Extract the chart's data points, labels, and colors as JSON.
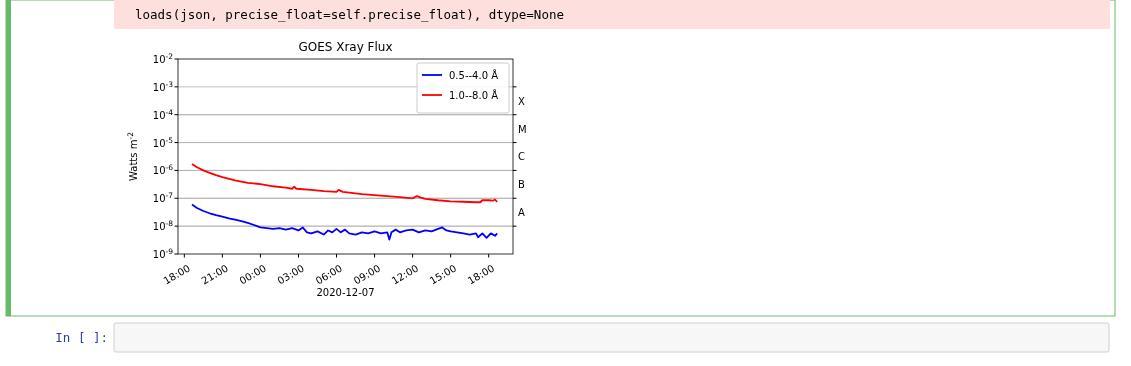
{
  "chart_data": {
    "type": "line",
    "title": "GOES Xray Flux",
    "xlabel": "2020-12-07",
    "ylabel": "Watts m$^{-2}$",
    "xlim": [
      "2020-12-06T17:30",
      "2020-12-07T19:55"
    ],
    "xticks": [
      {
        "value": "2020-12-06T18:00",
        "label": "18:00"
      },
      {
        "value": "2020-12-06T21:00",
        "label": "21:00"
      },
      {
        "value": "2020-12-07T00:00",
        "label": "00:00"
      },
      {
        "value": "2020-12-07T03:00",
        "label": "03:00"
      },
      {
        "value": "2020-12-07T06:00",
        "label": "06:00"
      },
      {
        "value": "2020-12-07T09:00",
        "label": "09:00"
      },
      {
        "value": "2020-12-07T12:00",
        "label": "12:00"
      },
      {
        "value": "2020-12-07T15:00",
        "label": "15:00"
      },
      {
        "value": "2020-12-07T18:00",
        "label": "18:00"
      }
    ],
    "ylim": [
      1e-09,
      0.01
    ],
    "yticks": [
      {
        "value": 1e-09,
        "label": "10$^{-9}$"
      },
      {
        "value": 1e-08,
        "label": "10$^{-8}$"
      },
      {
        "value": 1e-07,
        "label": "10$^{-7}$"
      },
      {
        "value": 1e-06,
        "label": "10$^{-6}$"
      },
      {
        "value": 1e-05,
        "label": "10$^{-5}$"
      },
      {
        "value": 0.0001,
        "label": "10$^{-4}$"
      },
      {
        "value": 0.001,
        "label": "10$^{-3}$"
      },
      {
        "value": 0.01,
        "label": "10$^{-2}$"
      }
    ],
    "ref_lines": [
      {
        "axis": "y",
        "value": 1e-08,
        "label": "A"
      },
      {
        "axis": "y",
        "value": 1e-07,
        "label": "B"
      },
      {
        "axis": "y",
        "value": 1e-06,
        "label": "C"
      },
      {
        "axis": "y",
        "value": 1e-05,
        "label": "M"
      },
      {
        "axis": "y",
        "value": 0.0001,
        "label": "X"
      }
    ],
    "log": "y",
    "grid": "y",
    "legend": "top right",
    "annotations": [
      "loads(json, precise_float=self.precise_float), dtype=None",
      "In [ ]:"
    ],
    "series": [
      {
        "name": "0.5--4.0 Å",
        "color": "#0000ff",
        "x": [
          "2020-12-06T18:36",
          "2020-12-06T19:00",
          "2020-12-06T19:30",
          "2020-12-06T20:00",
          "2020-12-06T20:30",
          "2020-12-06T21:00",
          "2020-12-06T21:30",
          "2020-12-06T22:00",
          "2020-12-06T22:30",
          "2020-12-06T23:00",
          "2020-12-06T23:30",
          "2020-12-07T00:00",
          "2020-12-07T00:30",
          "2020-12-07T01:00",
          "2020-12-07T01:30",
          "2020-12-07T02:00",
          "2020-12-07T02:30",
          "2020-12-07T03:00",
          "2020-12-07T03:20",
          "2020-12-07T03:40",
          "2020-12-07T04:00",
          "2020-12-07T04:30",
          "2020-12-07T05:00",
          "2020-12-07T05:20",
          "2020-12-07T05:40",
          "2020-12-07T06:00",
          "2020-12-07T06:20",
          "2020-12-07T06:40",
          "2020-12-07T07:00",
          "2020-12-07T07:30",
          "2020-12-07T08:00",
          "2020-12-07T08:30",
          "2020-12-07T09:00",
          "2020-12-07T09:30",
          "2020-12-07T10:00",
          "2020-12-07T10:10",
          "2020-12-07T10:20",
          "2020-12-07T10:40",
          "2020-12-07T11:00",
          "2020-12-07T11:30",
          "2020-12-07T12:00",
          "2020-12-07T12:30",
          "2020-12-07T13:00",
          "2020-12-07T13:30",
          "2020-12-07T14:00",
          "2020-12-07T14:20",
          "2020-12-07T14:40",
          "2020-12-07T15:00",
          "2020-12-07T15:30",
          "2020-12-07T16:00",
          "2020-12-07T16:30",
          "2020-12-07T17:00",
          "2020-12-07T17:10",
          "2020-12-07T17:30",
          "2020-12-07T17:50",
          "2020-12-07T18:10",
          "2020-12-07T18:30",
          "2020-12-07T18:40"
        ],
        "values": [
          6e-08,
          4.5e-08,
          3.5e-08,
          2.9e-08,
          2.5e-08,
          2.2e-08,
          1.9e-08,
          1.7e-08,
          1.5e-08,
          1.3e-08,
          1.1e-08,
          9e-09,
          8.5e-09,
          8e-09,
          8.5e-09,
          7.5e-09,
          8.5e-09,
          7e-09,
          9e-09,
          6e-09,
          5.5e-09,
          6.5e-09,
          5e-09,
          7e-09,
          6e-09,
          8e-09,
          6e-09,
          7.5e-09,
          5.5e-09,
          5e-09,
          6e-09,
          5.5e-09,
          6.5e-09,
          5.5e-09,
          6e-09,
          3.3e-09,
          6e-09,
          7.5e-09,
          6e-09,
          7e-09,
          7.5e-09,
          6e-09,
          7e-09,
          6.5e-09,
          8e-09,
          9e-09,
          7e-09,
          6.5e-09,
          6e-09,
          5.5e-09,
          5e-09,
          5.5e-09,
          4e-09,
          5.5e-09,
          3.8e-09,
          5.5e-09,
          4.5e-09,
          5.5e-09
        ]
      },
      {
        "name": "1.0--8.0 Å",
        "color": "#ff0000",
        "x": [
          "2020-12-06T18:36",
          "2020-12-06T19:00",
          "2020-12-06T19:30",
          "2020-12-06T20:00",
          "2020-12-06T20:30",
          "2020-12-06T21:00",
          "2020-12-06T22:00",
          "2020-12-06T23:00",
          "2020-12-07T00:00",
          "2020-12-07T01:00",
          "2020-12-07T02:00",
          "2020-12-07T02:30",
          "2020-12-07T02:40",
          "2020-12-07T02:50",
          "2020-12-07T04:00",
          "2020-12-07T05:00",
          "2020-12-07T06:00",
          "2020-12-07T06:10",
          "2020-12-07T06:30",
          "2020-12-07T08:00",
          "2020-12-07T09:00",
          "2020-12-07T10:00",
          "2020-12-07T11:00",
          "2020-12-07T12:00",
          "2020-12-07T12:20",
          "2020-12-07T12:40",
          "2020-12-07T13:00",
          "2020-12-07T14:00",
          "2020-12-07T15:00",
          "2020-12-07T16:00",
          "2020-12-07T17:00",
          "2020-12-07T17:20",
          "2020-12-07T17:30",
          "2020-12-07T18:00",
          "2020-12-07T18:20",
          "2020-12-07T18:30",
          "2020-12-07T18:40"
        ],
        "values": [
          1.7e-06,
          1.3e-06,
          1e-06,
          8.2e-07,
          6.8e-07,
          5.8e-07,
          4.4e-07,
          3.6e-07,
          3.2e-07,
          2.7e-07,
          2.4e-07,
          2.2e-07,
          2.6e-07,
          2.2e-07,
          2e-07,
          1.8e-07,
          1.7e-07,
          2e-07,
          1.7e-07,
          1.4e-07,
          1.3e-07,
          1.2e-07,
          1.1e-07,
          1e-07,
          1.2e-07,
          1.05e-07,
          9.5e-08,
          8.5e-08,
          7.8e-08,
          7.5e-08,
          7.2e-08,
          7.2e-08,
          8.5e-08,
          8.5e-08,
          8.2e-08,
          9e-08,
          7.5e-08
        ]
      }
    ]
  }
}
